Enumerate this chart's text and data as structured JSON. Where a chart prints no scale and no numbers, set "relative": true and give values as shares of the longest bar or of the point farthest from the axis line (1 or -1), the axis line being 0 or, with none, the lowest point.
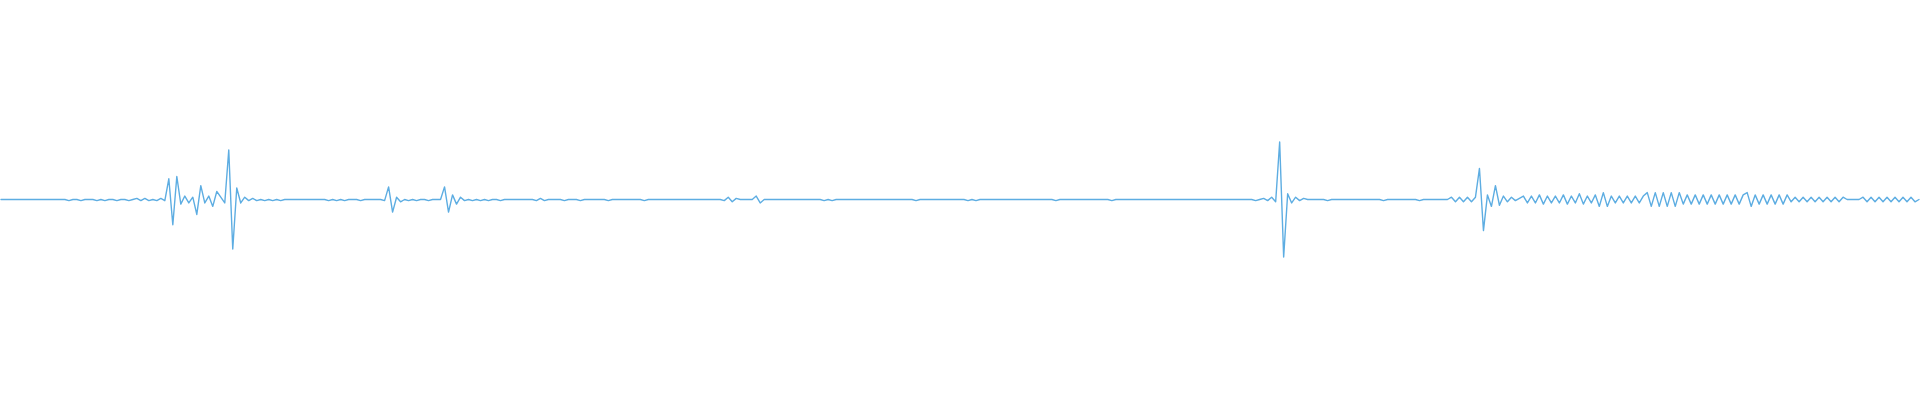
{
  "chart_data": {
    "type": "line",
    "relative": true,
    "marker": "none",
    "tick_labels": false,
    "categories": [
      null,
      null,
      null,
      null,
      null,
      null,
      null,
      null,
      null,
      null,
      null,
      null,
      null,
      null,
      null,
      null,
      null,
      null,
      null,
      null,
      null,
      null,
      null,
      null,
      null,
      null,
      null,
      null,
      null,
      null,
      null,
      null,
      null,
      null,
      null,
      null,
      null,
      null,
      null,
      null,
      null,
      null,
      null,
      null,
      null,
      null,
      null,
      null,
      null,
      null,
      null,
      null,
      null,
      null,
      null,
      null,
      null,
      null,
      null,
      null,
      null,
      null,
      null,
      null,
      null,
      null,
      null,
      null,
      null,
      null,
      null,
      null,
      null,
      null,
      null,
      null,
      null,
      null,
      null,
      null,
      null,
      null,
      null,
      null,
      null,
      null,
      null,
      null,
      null,
      null,
      null,
      null,
      null,
      null,
      null,
      null,
      null,
      null,
      null,
      null,
      null,
      null,
      null,
      null,
      null,
      null,
      null,
      null,
      null,
      null,
      null,
      null,
      null,
      null,
      null,
      null,
      null,
      null,
      null,
      null,
      null,
      null,
      null,
      null,
      null,
      null,
      null,
      null,
      null,
      null,
      null,
      null,
      null,
      null,
      null,
      null,
      null,
      null,
      null,
      null,
      null,
      null,
      null,
      null,
      null,
      null,
      null,
      null,
      null,
      null,
      null,
      null,
      null,
      null,
      null,
      null,
      null,
      null,
      null,
      null,
      null,
      null,
      null,
      null,
      null,
      null,
      null,
      null,
      null,
      null,
      null,
      null,
      null,
      null,
      null,
      null,
      null,
      null,
      null,
      null,
      null,
      null,
      null,
      null,
      null,
      null,
      null,
      null,
      null,
      null,
      null,
      null,
      null,
      null,
      null,
      null,
      null,
      null,
      null,
      null,
      null,
      null,
      null,
      null,
      null,
      null,
      null,
      null,
      null,
      null,
      null,
      null,
      null,
      null,
      null,
      null,
      null,
      null,
      null,
      null,
      null,
      null,
      null,
      null,
      null,
      null,
      null,
      null,
      null,
      null,
      null,
      null,
      null,
      null,
      null,
      null,
      null,
      null,
      null,
      null,
      null,
      null,
      null,
      null,
      null,
      null,
      null,
      null,
      null,
      null,
      null,
      null,
      null,
      null,
      null,
      null,
      null,
      null,
      null,
      null,
      null,
      null,
      null,
      null,
      null,
      null,
      null,
      null,
      null,
      null,
      null,
      null,
      null,
      null,
      null,
      null,
      null,
      null,
      null,
      null,
      null,
      null,
      null,
      null,
      null,
      null,
      null,
      null,
      null,
      null,
      null,
      null,
      null,
      null,
      null,
      null,
      null,
      null,
      null,
      null,
      null,
      null,
      null,
      null,
      null,
      null,
      null,
      null,
      null,
      null,
      null,
      null,
      null,
      null,
      null,
      null,
      null,
      null,
      null,
      null,
      null,
      null,
      null,
      null,
      null,
      null,
      null,
      null,
      null,
      null,
      null,
      null,
      null,
      null,
      null,
      null,
      null,
      null,
      null,
      null,
      null,
      null,
      null,
      null,
      null,
      null,
      null,
      null,
      null,
      null,
      null,
      null,
      null,
      null,
      null,
      null,
      null,
      null,
      null,
      null,
      null,
      null,
      null,
      null,
      null,
      null,
      null,
      null,
      null,
      null,
      null,
      null,
      null,
      null,
      null,
      null,
      null,
      null,
      null,
      null,
      null,
      null,
      null,
      null,
      null,
      null,
      null,
      null,
      null,
      null,
      null,
      null,
      null,
      null,
      null,
      null,
      null,
      null,
      null,
      null,
      null,
      null,
      null,
      null,
      null,
      null,
      null,
      null,
      null,
      null,
      null,
      null,
      null,
      null,
      null,
      null,
      null,
      null,
      null,
      null,
      null,
      null,
      null,
      null,
      null,
      null,
      null,
      null,
      null,
      null,
      null,
      null,
      null,
      null,
      null,
      null,
      null,
      null,
      null,
      null,
      null,
      null,
      null,
      null,
      null,
      null,
      null,
      null,
      null,
      null,
      null,
      null,
      null,
      null,
      null,
      null,
      null,
      null,
      null,
      null,
      null,
      null,
      null,
      null,
      null,
      null,
      null,
      null,
      null,
      null,
      null,
      null,
      null,
      null,
      null,
      null,
      null,
      null,
      null,
      null,
      null
    ],
    "series": [
      {
        "color": "#5dade2",
        "values": [
          0.5,
          0.5,
          0.5,
          0.5,
          0.5,
          0.5,
          0.5,
          0.5,
          0.5,
          0.5,
          0.5,
          0.5,
          0.5,
          0.5,
          0.5,
          0.5,
          0.5,
          0.49,
          0.5,
          0.5,
          0.49,
          0.5,
          0.5,
          0.5,
          0.49,
          0.5,
          0.49,
          0.5,
          0.5,
          0.49,
          0.5,
          0.5,
          0.49,
          0.5,
          0.51,
          0.49,
          0.51,
          0.49,
          0.5,
          0.49,
          0.51,
          0.49,
          0.68,
          0.28,
          0.7,
          0.46,
          0.53,
          0.47,
          0.52,
          0.37,
          0.62,
          0.47,
          0.53,
          0.44,
          0.57,
          0.52,
          0.47,
          0.93,
          0.07,
          0.6,
          0.47,
          0.52,
          0.49,
          0.51,
          0.49,
          0.5,
          0.49,
          0.5,
          0.49,
          0.5,
          0.49,
          0.5,
          0.5,
          0.5,
          0.5,
          0.5,
          0.5,
          0.5,
          0.5,
          0.5,
          0.5,
          0.5,
          0.49,
          0.5,
          0.49,
          0.5,
          0.49,
          0.5,
          0.5,
          0.5,
          0.49,
          0.5,
          0.5,
          0.5,
          0.5,
          0.5,
          0.49,
          0.61,
          0.39,
          0.52,
          0.48,
          0.5,
          0.49,
          0.5,
          0.49,
          0.5,
          0.5,
          0.49,
          0.5,
          0.5,
          0.5,
          0.61,
          0.39,
          0.54,
          0.46,
          0.52,
          0.49,
          0.5,
          0.49,
          0.5,
          0.49,
          0.5,
          0.49,
          0.5,
          0.5,
          0.49,
          0.5,
          0.5,
          0.5,
          0.5,
          0.5,
          0.5,
          0.5,
          0.5,
          0.49,
          0.51,
          0.49,
          0.5,
          0.5,
          0.5,
          0.5,
          0.49,
          0.5,
          0.5,
          0.5,
          0.49,
          0.5,
          0.5,
          0.5,
          0.5,
          0.5,
          0.5,
          0.49,
          0.5,
          0.5,
          0.5,
          0.5,
          0.5,
          0.5,
          0.5,
          0.5,
          0.49,
          0.5,
          0.5,
          0.5,
          0.5,
          0.5,
          0.5,
          0.5,
          0.5,
          0.5,
          0.5,
          0.5,
          0.5,
          0.5,
          0.5,
          0.5,
          0.5,
          0.5,
          0.5,
          0.5,
          0.49,
          0.52,
          0.48,
          0.51,
          0.5,
          0.5,
          0.5,
          0.5,
          0.53,
          0.47,
          0.5,
          0.5,
          0.5,
          0.5,
          0.5,
          0.5,
          0.5,
          0.5,
          0.5,
          0.5,
          0.5,
          0.5,
          0.5,
          0.5,
          0.5,
          0.49,
          0.5,
          0.49,
          0.5,
          0.5,
          0.5,
          0.5,
          0.5,
          0.5,
          0.5,
          0.5,
          0.5,
          0.5,
          0.5,
          0.5,
          0.5,
          0.5,
          0.5,
          0.5,
          0.5,
          0.5,
          0.5,
          0.5,
          0.49,
          0.5,
          0.5,
          0.5,
          0.5,
          0.5,
          0.5,
          0.5,
          0.5,
          0.5,
          0.5,
          0.5,
          0.5,
          0.49,
          0.5,
          0.49,
          0.5,
          0.5,
          0.5,
          0.5,
          0.5,
          0.5,
          0.5,
          0.5,
          0.5,
          0.5,
          0.5,
          0.5,
          0.5,
          0.5,
          0.5,
          0.5,
          0.5,
          0.5,
          0.5,
          0.49,
          0.5,
          0.5,
          0.5,
          0.5,
          0.5,
          0.5,
          0.5,
          0.5,
          0.5,
          0.5,
          0.5,
          0.5,
          0.5,
          0.49,
          0.5,
          0.5,
          0.5,
          0.5,
          0.5,
          0.5,
          0.5,
          0.5,
          0.5,
          0.5,
          0.5,
          0.5,
          0.5,
          0.5,
          0.5,
          0.5,
          0.5,
          0.5,
          0.5,
          0.5,
          0.5,
          0.5,
          0.5,
          0.5,
          0.5,
          0.5,
          0.5,
          0.5,
          0.5,
          0.5,
          0.5,
          0.5,
          0.5,
          0.5,
          0.5,
          0.49,
          0.5,
          0.51,
          0.49,
          0.52,
          0.48,
          1,
          0,
          0.55,
          0.47,
          0.52,
          0.49,
          0.51,
          0.5,
          0.5,
          0.5,
          0.5,
          0.5,
          0.49,
          0.5,
          0.5,
          0.5,
          0.5,
          0.5,
          0.5,
          0.5,
          0.5,
          0.5,
          0.5,
          0.5,
          0.5,
          0.5,
          0.49,
          0.5,
          0.5,
          0.5,
          0.5,
          0.5,
          0.5,
          0.5,
          0.5,
          0.49,
          0.5,
          0.5,
          0.5,
          0.5,
          0.5,
          0.5,
          0.5,
          0.52,
          0.48,
          0.52,
          0.48,
          0.52,
          0.48,
          0.52,
          0.77,
          0.23,
          0.54,
          0.44,
          0.62,
          0.45,
          0.53,
          0.48,
          0.52,
          0.49,
          0.51,
          0.53,
          0.47,
          0.53,
          0.47,
          0.54,
          0.46,
          0.53,
          0.47,
          0.53,
          0.47,
          0.54,
          0.46,
          0.53,
          0.47,
          0.55,
          0.46,
          0.53,
          0.47,
          0.54,
          0.44,
          0.56,
          0.44,
          0.53,
          0.47,
          0.53,
          0.47,
          0.53,
          0.47,
          0.53,
          0.47,
          0.53,
          0.56,
          0.44,
          0.56,
          0.44,
          0.56,
          0.44,
          0.56,
          0.44,
          0.56,
          0.46,
          0.54,
          0.46,
          0.54,
          0.46,
          0.54,
          0.46,
          0.54,
          0.46,
          0.54,
          0.46,
          0.54,
          0.46,
          0.54,
          0.46,
          0.54,
          0.56,
          0.44,
          0.54,
          0.46,
          0.54,
          0.46,
          0.54,
          0.46,
          0.54,
          0.46,
          0.54,
          0.48,
          0.52,
          0.48,
          0.52,
          0.48,
          0.52,
          0.48,
          0.52,
          0.48,
          0.52,
          0.48,
          0.52,
          0.48,
          0.52,
          0.5,
          0.5,
          0.5,
          0.5,
          0.52,
          0.48,
          0.52,
          0.48,
          0.52,
          0.48,
          0.52,
          0.48,
          0.52,
          0.48,
          0.52,
          0.48,
          0.52,
          0.48,
          0.5
        ]
      }
    ]
  }
}
